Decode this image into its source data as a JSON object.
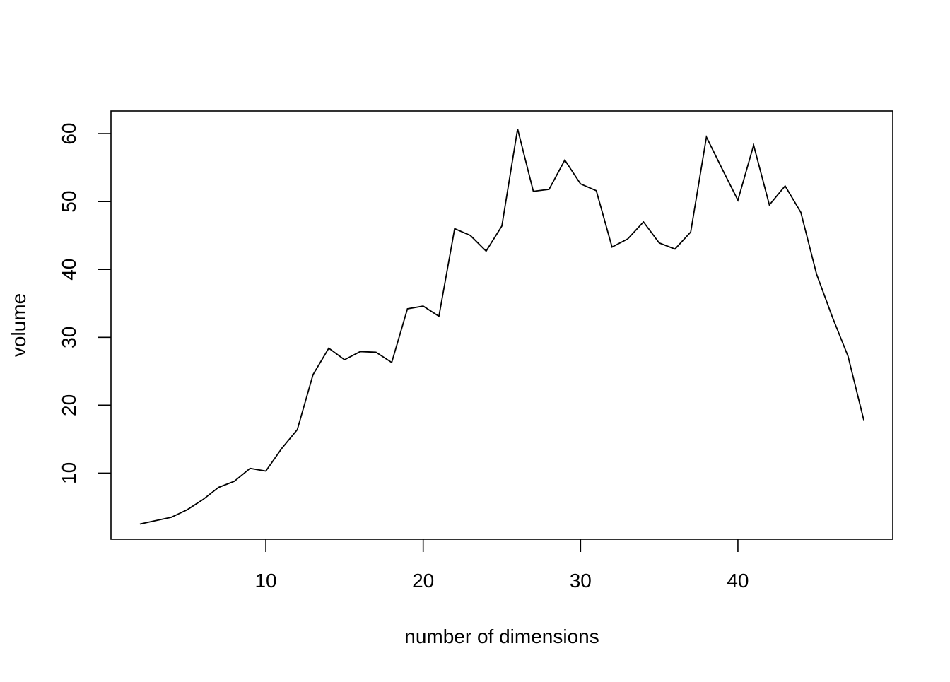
{
  "chart_data": {
    "type": "line",
    "title": "",
    "xlabel": "number of dimensions",
    "ylabel": "volume",
    "xlim": [
      0.16,
      49.84
    ],
    "ylim": [
      0.26,
      63.34
    ],
    "x_ticks": [
      10,
      20,
      30,
      40
    ],
    "y_ticks": [
      10,
      20,
      30,
      40,
      50,
      60
    ],
    "grid": false,
    "legend": "none",
    "line_color": "#000000",
    "series": [
      {
        "x": [
          2,
          3,
          4,
          5,
          6,
          7,
          8,
          9,
          10,
          11,
          12,
          13,
          14,
          15,
          16,
          17,
          18,
          19,
          20,
          21,
          22,
          23,
          24,
          25,
          26,
          27,
          28,
          29,
          30,
          31,
          32,
          33,
          34,
          35,
          36,
          37,
          38,
          39,
          40,
          41,
          42,
          43,
          44,
          45,
          46,
          47,
          48
        ],
        "values": [
          2.5,
          3.0,
          3.5,
          4.6,
          6.1,
          7.9,
          8.8,
          10.7,
          10.3,
          13.6,
          16.4,
          24.5,
          28.4,
          26.7,
          27.9,
          27.8,
          26.3,
          34.2,
          34.6,
          33.1,
          46.0,
          45.0,
          42.7,
          46.4,
          60.7,
          51.5,
          51.8,
          56.1,
          52.6,
          51.6,
          43.3,
          44.5,
          47.0,
          43.9,
          43.0,
          45.5,
          59.5,
          54.8,
          50.2,
          58.3,
          49.5,
          52.3,
          48.4,
          39.3,
          33.0,
          27.2,
          17.8
        ]
      }
    ]
  }
}
